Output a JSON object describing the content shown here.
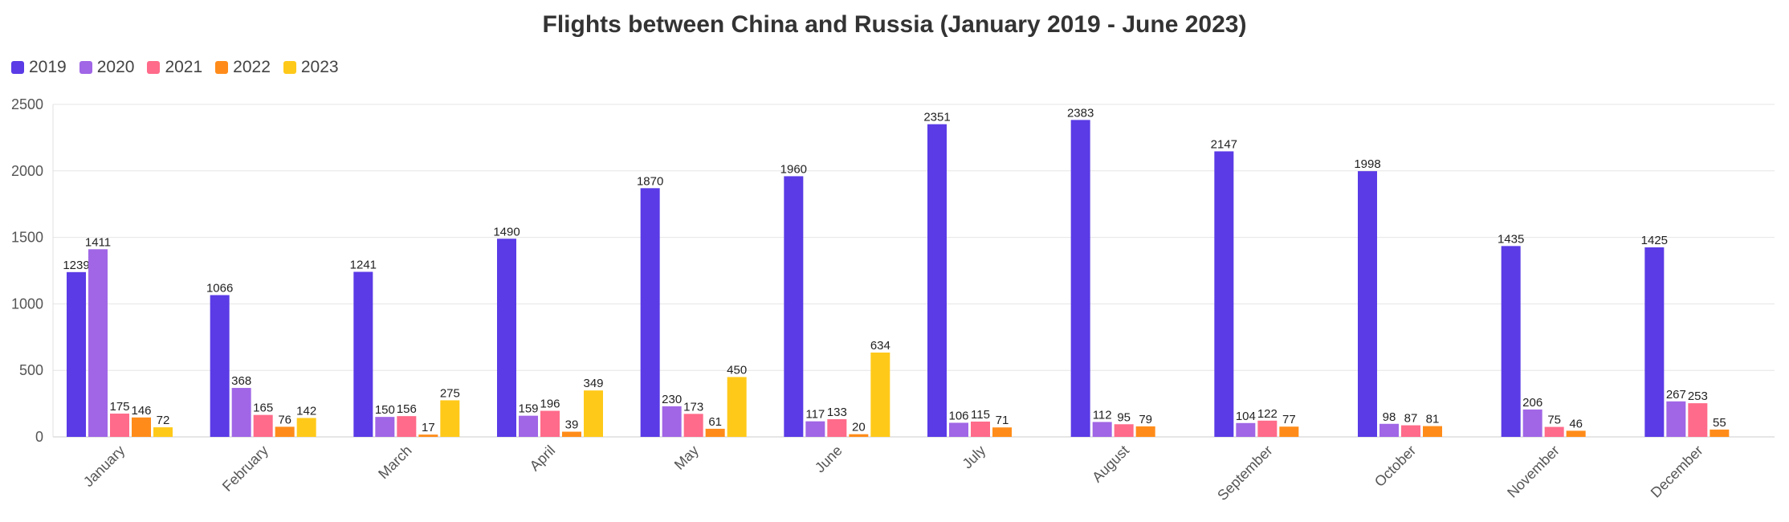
{
  "chart_data": {
    "type": "bar",
    "title": "Flights between China and Russia (January 2019 - June 2023)",
    "xlabel": "",
    "ylabel": "",
    "ylim": [
      0,
      2500
    ],
    "yticks": [
      0,
      500,
      1000,
      1500,
      2000,
      2500
    ],
    "grid": true,
    "legend_position": "top-left",
    "categories": [
      "January",
      "February",
      "March",
      "April",
      "May",
      "June",
      "July",
      "August",
      "September",
      "October",
      "November",
      "December"
    ],
    "series": [
      {
        "name": "2019",
        "color": "#5a3be6",
        "values": [
          1239,
          1066,
          1241,
          1490,
          1870,
          1960,
          2351,
          2383,
          2147,
          1998,
          1435,
          1425
        ]
      },
      {
        "name": "2020",
        "color": "#a066e6",
        "values": [
          1411,
          368,
          150,
          159,
          230,
          117,
          106,
          112,
          104,
          98,
          206,
          267
        ]
      },
      {
        "name": "2021",
        "color": "#ff6b8a",
        "values": [
          175,
          165,
          156,
          196,
          173,
          133,
          115,
          95,
          122,
          87,
          75,
          253
        ]
      },
      {
        "name": "2022",
        "color": "#ff8c1a",
        "values": [
          146,
          76,
          17,
          39,
          61,
          20,
          71,
          79,
          77,
          81,
          46,
          55
        ]
      },
      {
        "name": "2023",
        "color": "#ffc91a",
        "values": [
          72,
          142,
          275,
          349,
          450,
          634,
          null,
          null,
          null,
          null,
          null,
          null
        ]
      }
    ]
  }
}
